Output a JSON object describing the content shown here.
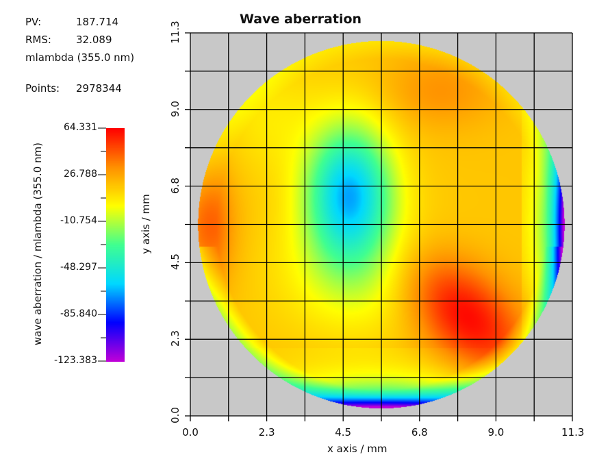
{
  "stats": {
    "pv_label": "PV:",
    "pv_value": "187.714",
    "rms_label": "RMS:",
    "rms_value": "32.089",
    "unit_text": "mlambda (355.0 nm)",
    "points_label": "Points:",
    "points_value": "2978344"
  },
  "chart_data": {
    "type": "heatmap",
    "title": "Wave aberration",
    "xlabel": "x axis / mm",
    "ylabel": "y axis / mm",
    "xlim": [
      0.0,
      11.3
    ],
    "ylim": [
      0.0,
      11.3
    ],
    "xticks": [
      "0.0",
      "2.3",
      "4.5",
      "6.8",
      "9.0",
      "11.3"
    ],
    "yticks": [
      "0.0",
      "2.3",
      "4.5",
      "6.8",
      "9.0",
      "11.3"
    ],
    "grid": true,
    "grid_divisions": 10,
    "background_color": "#c8c8c8",
    "aperture": "circular",
    "colorbar": {
      "label": "wave aberration / mlambda (355.0 nm)",
      "min": -123.383,
      "max": 64.331,
      "ticks": [
        "64.331",
        "26.788",
        "-10.754",
        "-48.297",
        "-85.840",
        "-123.383"
      ],
      "colormap": [
        "#c000d8",
        "#0000ff",
        "#00d8ff",
        "#40ff90",
        "#ffff00",
        "#ff9000",
        "#ff0000"
      ]
    },
    "features": [
      {
        "type": "maximum",
        "x": 8.2,
        "y": 2.9,
        "value": 64.3
      },
      {
        "type": "local-low",
        "x": 4.7,
        "y": 6.7,
        "value": -75
      },
      {
        "type": "edge-minimum",
        "x": 11.0,
        "y": 5.6,
        "value": -123.4
      },
      {
        "type": "edge-high",
        "x": 0.5,
        "y": 5.6,
        "value": 45
      }
    ]
  }
}
